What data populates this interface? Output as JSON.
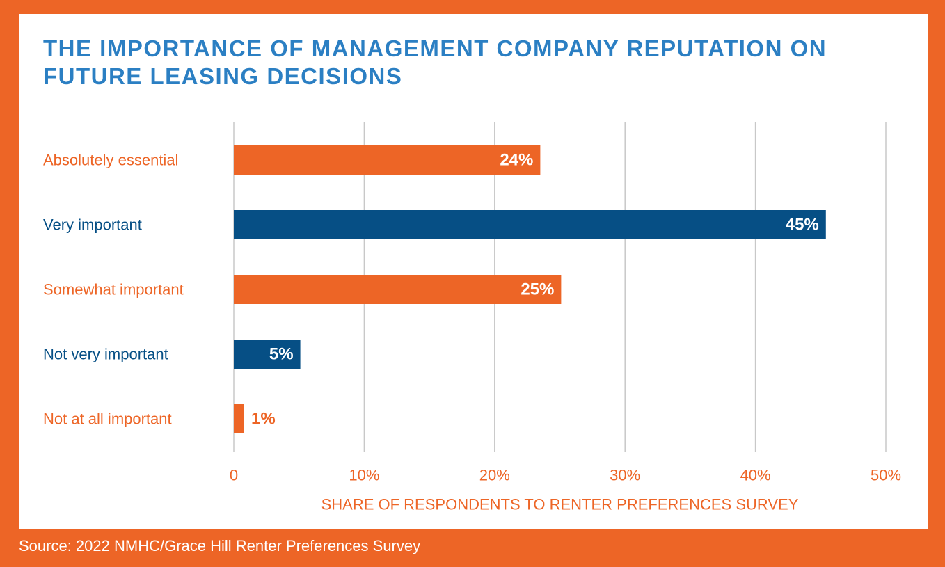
{
  "title": "THE IMPORTANCE OF MANAGEMENT COMPANY REPUTATION ON FUTURE LEASING DECISIONS",
  "source": "Source: 2022 NMHC/Grace Hill Renter Preferences Survey",
  "colors": {
    "orange": "#ED6526",
    "blue": "#064F85",
    "title_blue": "#2B7FC3",
    "grid": "#C8C8C8"
  },
  "chart_data": {
    "type": "bar",
    "orientation": "horizontal",
    "categories": [
      "Absolutely essential",
      "Very important",
      "Somewhat important",
      "Not very important",
      "Not at all important"
    ],
    "values": [
      23.5,
      45.4,
      25.1,
      5.1,
      0.8
    ],
    "value_labels": [
      "24%",
      "45%",
      "25%",
      "5%",
      "1%"
    ],
    "bar_colors": [
      "#ED6526",
      "#064F85",
      "#ED6526",
      "#064F85",
      "#ED6526"
    ],
    "xlim": [
      0,
      50
    ],
    "x_ticks": [
      0,
      10,
      20,
      30,
      40,
      50
    ],
    "x_tick_labels": [
      "0",
      "10%",
      "20%",
      "30%",
      "40%",
      "50%"
    ],
    "xlabel": "SHARE OF RESPONDENTS TO RENTER PREFERENCES SURVEY",
    "grid": true
  }
}
